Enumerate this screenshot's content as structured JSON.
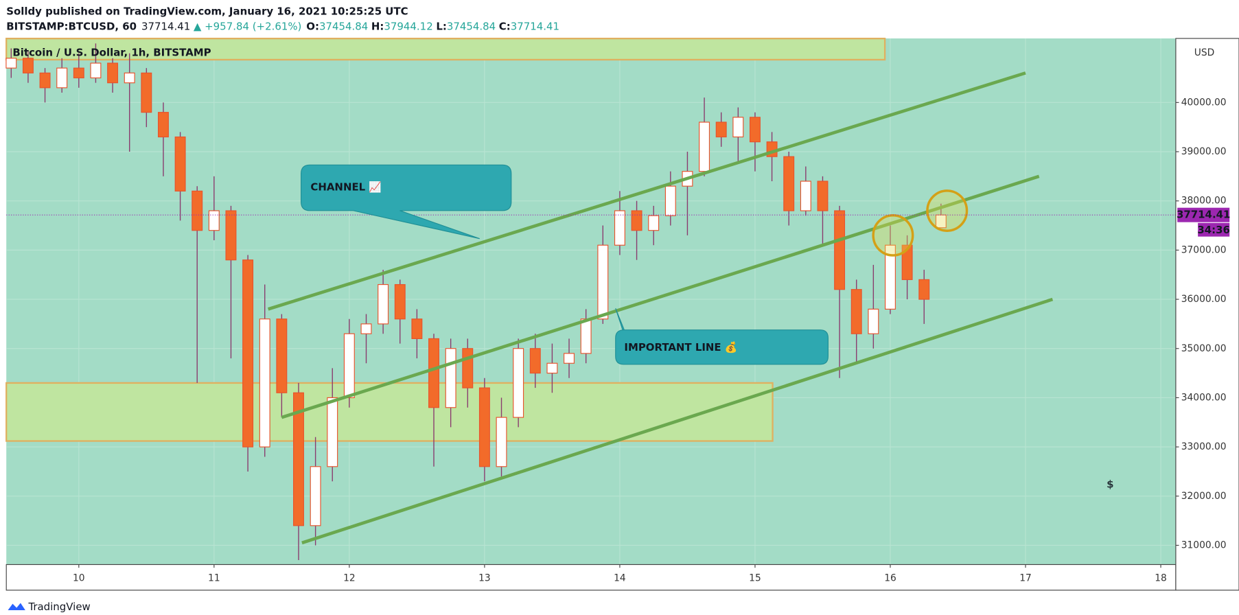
{
  "header": {
    "title": "Solldy published on TradingView.com, January 16, 2021 10:25:25 UTC",
    "symbol": "BITSTAMP:BTCUSD, 60",
    "last": "37714.41",
    "change": "▲ +957.84 (+2.61%)",
    "o_label": "O:",
    "o": "37454.84",
    "h_label": "H:",
    "h": "37944.12",
    "l_label": "L:",
    "l": "37454.84",
    "c_label": "C:",
    "c": "37714.41"
  },
  "footer": "TradingView",
  "chart_data": {
    "type": "candlestick",
    "title": "Bitcoin / U.S. Dollar, 1h, BITSTAMP",
    "currency": "USD",
    "x": [
      9.5,
      9.625,
      9.75,
      9.875,
      10,
      10.125,
      10.25,
      10.375,
      10.5,
      10.625,
      10.75,
      10.875,
      11,
      11.125,
      11.25,
      11.375,
      11.5,
      11.625,
      11.75,
      11.875,
      12,
      12.125,
      12.25,
      12.375,
      12.5,
      12.625,
      12.75,
      12.875,
      13,
      13.125,
      13.25,
      13.375,
      13.5,
      13.625,
      13.75,
      13.875,
      14,
      14.125,
      14.25,
      14.375,
      14.5,
      14.625,
      14.75,
      14.875,
      15,
      15.125,
      15.25,
      15.375,
      15.5,
      15.625,
      15.75,
      15.875,
      16,
      16.125,
      16.25,
      16.375
    ],
    "open": [
      40700,
      40900,
      40600,
      40300,
      40700,
      40500,
      40800,
      40400,
      40600,
      39800,
      39300,
      38200,
      37400,
      37800,
      36800,
      33000,
      35600,
      34100,
      31400,
      32600,
      34000,
      35300,
      35500,
      36300,
      35600,
      35200,
      33800,
      35000,
      34200,
      32600,
      33600,
      35000,
      34500,
      34700,
      34900,
      35600,
      37100,
      37800,
      37400,
      37700,
      38300,
      38600,
      39600,
      39300,
      39700,
      39200,
      38900,
      37800,
      38400,
      37800,
      36200,
      35300,
      35800,
      37100,
      36400,
      37454.84
    ],
    "high": [
      41100,
      41050,
      40700,
      40900,
      41000,
      41200,
      40900,
      41000,
      40700,
      40000,
      39400,
      38300,
      38500,
      37900,
      36900,
      36300,
      35700,
      34300,
      33200,
      34600,
      35600,
      35700,
      36600,
      36400,
      35800,
      35300,
      35200,
      35200,
      34400,
      34000,
      35200,
      35300,
      35100,
      35200,
      35800,
      37500,
      38200,
      38000,
      37900,
      38600,
      39000,
      40100,
      39800,
      39900,
      39800,
      39400,
      39000,
      38700,
      38500,
      37900,
      36400,
      36700,
      37500,
      37300,
      36600,
      37944.12
    ],
    "low": [
      40500,
      40400,
      40000,
      40200,
      40300,
      40400,
      40200,
      39000,
      39500,
      38500,
      37600,
      34300,
      37200,
      34800,
      32500,
      32800,
      33600,
      30700,
      31000,
      32300,
      33800,
      34700,
      35300,
      35100,
      34800,
      32600,
      33400,
      33800,
      32300,
      32400,
      33400,
      34200,
      34100,
      34400,
      34700,
      35500,
      36900,
      36800,
      37100,
      37500,
      37300,
      38500,
      39100,
      38800,
      38600,
      38400,
      37500,
      37700,
      37100,
      34400,
      34700,
      35000,
      35700,
      36000,
      35500,
      37454.84
    ],
    "close": [
      40900,
      40600,
      40300,
      40700,
      40500,
      40800,
      40400,
      40600,
      39800,
      39300,
      38200,
      37400,
      37800,
      36800,
      33000,
      35600,
      34100,
      31400,
      32600,
      34000,
      35300,
      35500,
      36300,
      35600,
      35200,
      33800,
      35000,
      34200,
      32600,
      33600,
      35000,
      34500,
      34700,
      34900,
      35600,
      37100,
      37800,
      37400,
      37700,
      38300,
      38600,
      39600,
      39300,
      39700,
      39200,
      38900,
      37800,
      38400,
      37800,
      36200,
      35300,
      35800,
      37100,
      36400,
      36000,
      37714.41
    ],
    "up_color": "#ffffff",
    "down_color": "#f26b2a",
    "border_color": "#e8532c",
    "wick_color": "#8a3b6e",
    "xlim": [
      9.464,
      18.111
    ],
    "xticks": [
      10,
      11,
      12,
      13,
      14,
      15,
      16,
      17,
      18
    ],
    "ylim": [
      30609,
      41302
    ],
    "yticks": [
      {
        "value": 31000,
        "label": "31000.00"
      },
      {
        "value": 32000,
        "label": "32000.00"
      },
      {
        "value": 33000,
        "label": "33000.00"
      },
      {
        "value": 34000,
        "label": "34000.00"
      },
      {
        "value": 35000,
        "label": "35000.00"
      },
      {
        "value": 36000,
        "label": "36000.00"
      },
      {
        "value": 37000,
        "label": "37000.00"
      },
      {
        "value": 38000,
        "label": "38000.00"
      },
      {
        "value": 39000,
        "label": "39000.00"
      },
      {
        "value": 40000,
        "label": "40000.00"
      }
    ],
    "grid": true,
    "background": "#a3dcc6",
    "last_price": {
      "value": 37714.41,
      "label": "37714.41",
      "countdown": "34:36",
      "color": "#9c27b0"
    },
    "lines": [
      {
        "x": [
          11.4,
          17.0
        ],
        "y": [
          35800,
          40600
        ]
      },
      {
        "x": [
          11.5,
          17.1
        ],
        "y": [
          33600,
          38500
        ]
      },
      {
        "x": [
          11.65,
          17.2
        ],
        "y": [
          31050,
          36000
        ]
      }
    ],
    "line_color": "#6aa84f",
    "zones": [
      {
        "x": [
          9.464,
          15.96
        ],
        "y": [
          41300,
          40870
        ]
      },
      {
        "x": [
          9.464,
          15.13
        ],
        "y": [
          34300,
          33120
        ]
      }
    ],
    "zone_color": "#bfe5a0",
    "circles": {
      "x": [
        16.02,
        16.42
      ],
      "y": [
        37300,
        37800
      ],
      "color": "#d4a017"
    },
    "annotations": [
      "CHANNEL 📈",
      "IMPORTANT LINE 💰"
    ],
    "watermark": "$"
  }
}
